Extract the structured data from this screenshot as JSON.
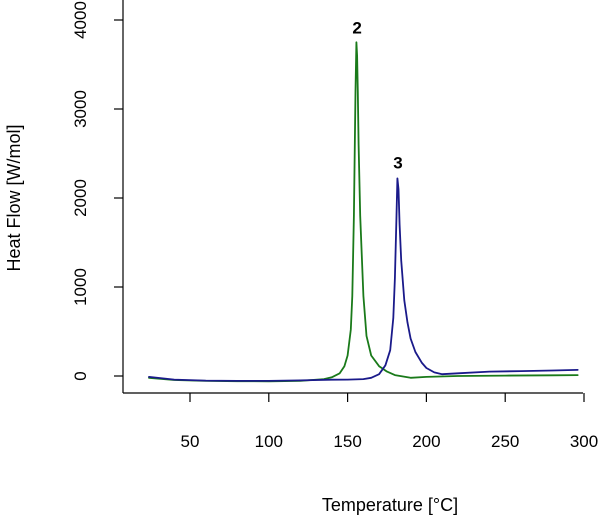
{
  "chart_data": {
    "type": "line",
    "title": "",
    "xlabel": "Temperature [°C]",
    "ylabel": "Heat Flow [W/mol]",
    "xlim": [
      15,
      300
    ],
    "ylim": [
      -200,
      4000
    ],
    "x_ticks": [
      50,
      100,
      150,
      200,
      250,
      300
    ],
    "y_ticks": [
      0,
      1000,
      2000,
      3000,
      4000
    ],
    "grid": false,
    "legend": "none",
    "annotations": [
      {
        "text": "2",
        "x": 156,
        "y": 3850
      },
      {
        "text": "3",
        "x": 182,
        "y": 2330
      }
    ],
    "series": [
      {
        "color": "#1a7a1a",
        "x": [
          24,
          40,
          60,
          80,
          100,
          120,
          135,
          140,
          145,
          148,
          150,
          152,
          153,
          154,
          155,
          155.6,
          156,
          156.5,
          157,
          158,
          160,
          162,
          165,
          170,
          175,
          180,
          190,
          200,
          220,
          250,
          280,
          296
        ],
        "y": [
          -20,
          -45,
          -55,
          -58,
          -60,
          -55,
          -35,
          -15,
          30,
          110,
          230,
          520,
          900,
          1800,
          3200,
          3750,
          3600,
          3200,
          2600,
          1800,
          900,
          450,
          230,
          110,
          50,
          10,
          -20,
          -10,
          0,
          5,
          8,
          10
        ]
      },
      {
        "color": "#1a1a8a",
        "x": [
          24,
          40,
          60,
          80,
          100,
          120,
          140,
          150,
          160,
          165,
          170,
          174,
          177,
          179,
          180,
          181,
          181.6,
          182.3,
          183,
          184,
          186,
          188,
          190,
          193,
          197,
          200,
          205,
          210,
          220,
          240,
          260,
          280,
          296
        ],
        "y": [
          -10,
          -40,
          -52,
          -55,
          -55,
          -50,
          -42,
          -40,
          -35,
          -20,
          20,
          120,
          290,
          650,
          1100,
          1800,
          2220,
          2100,
          1700,
          1300,
          850,
          600,
          420,
          270,
          150,
          90,
          40,
          20,
          30,
          50,
          55,
          62,
          68
        ]
      }
    ]
  }
}
